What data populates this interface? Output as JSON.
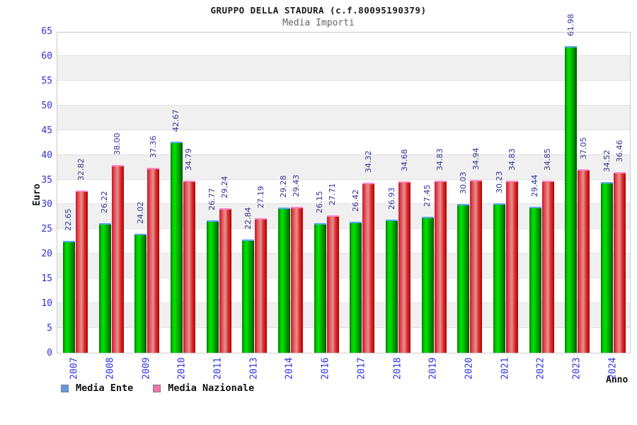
{
  "header": {
    "title": "GRUPPO DELLA STADURA (c.f.80095190379)",
    "subtitle": "Media Importi"
  },
  "axes": {
    "y_label": "Euro",
    "x_label": "Anno",
    "y_ticks": [
      0,
      5,
      10,
      15,
      20,
      25,
      30,
      35,
      40,
      45,
      50,
      55,
      60,
      65
    ]
  },
  "legend": [
    {
      "label": "Media Ente",
      "swatch_color": "#5f9bdf"
    },
    {
      "label": "Media Nazionale",
      "swatch_color": "#ee77aa"
    }
  ],
  "colors": {
    "tick_label": "#3030dd",
    "value_label": "#333399",
    "band_gray": "#f0f0f0",
    "gridline": "#e2e2e2",
    "plot_border": "#cccccc",
    "bar_green_mid": "#00e400",
    "bar_green_cap": "#5ea8ff",
    "bar_red_mid": "#e89090",
    "bar_red_cap": "#ff85c2"
  },
  "chart_data": {
    "type": "bar",
    "title": "GRUPPO DELLA STADURA (c.f.80095190379)",
    "subtitle": "Media Importi",
    "xlabel": "Anno",
    "ylabel": "Euro",
    "ylim": [
      0,
      65
    ],
    "y_tick_step": 5,
    "grid": true,
    "legend_position": "bottom",
    "categories": [
      "2007",
      "2008",
      "2009",
      "2010",
      "2011",
      "2013",
      "2014",
      "2016",
      "2017",
      "2018",
      "2019",
      "2020",
      "2021",
      "2022",
      "2023",
      "2024"
    ],
    "series": [
      {
        "name": "Media Ente",
        "bar_color": "green",
        "values": [
          22.65,
          26.22,
          24.02,
          42.67,
          26.77,
          22.84,
          29.28,
          26.15,
          26.42,
          26.93,
          27.45,
          30.03,
          30.23,
          29.44,
          61.98,
          34.52
        ],
        "labels": [
          "22.65",
          "26.22",
          "24.02",
          "42.67",
          "26.77",
          "22.84",
          "29.28",
          "26.15",
          "26.42",
          "26.93",
          "27.45",
          "30.03",
          "30.23",
          "29.44",
          "61.98",
          "34.52"
        ]
      },
      {
        "name": "Media Nazionale",
        "bar_color": "red",
        "values": [
          32.82,
          38.0,
          37.36,
          34.79,
          29.24,
          27.19,
          29.43,
          27.71,
          34.32,
          34.68,
          34.83,
          34.94,
          34.83,
          34.85,
          37.05,
          36.46
        ],
        "labels": [
          "32.82",
          "38.00",
          "37.36",
          "34.79",
          "29.24",
          "27.19",
          "29.43",
          "27.71",
          "34.32",
          "34.68",
          "34.83",
          "34.94",
          "34.83",
          "34.85",
          "37.05",
          "36.46"
        ]
      }
    ]
  }
}
